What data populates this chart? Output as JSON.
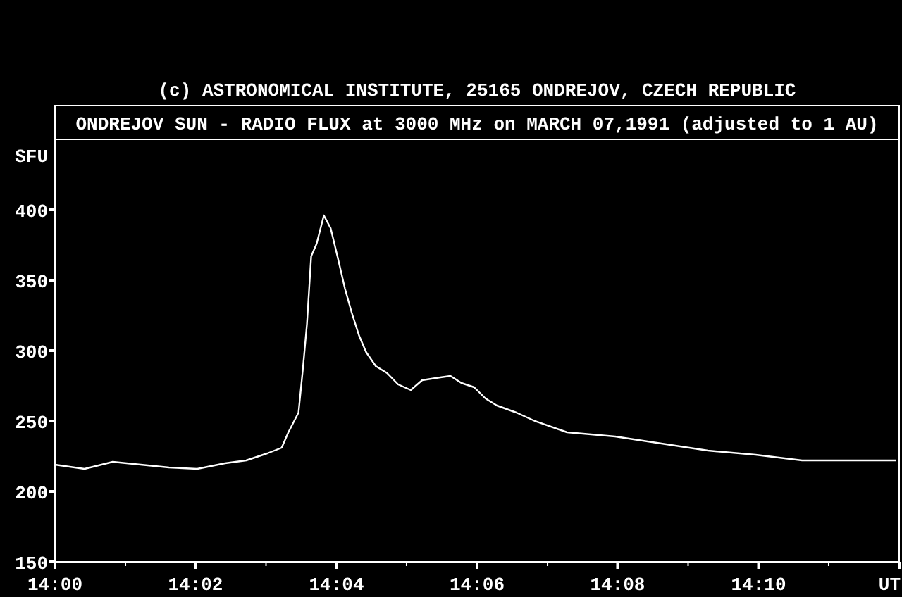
{
  "chart_data": {
    "type": "line",
    "title": "ONDREJOV SUN - RADIO FLUX at 3000 MHz on MARCH 07,1991 (adjusted to 1 AU)",
    "ylabel": "SFU",
    "annotations": [
      "(c) ASTRONOMICAL INSTITUTE, 25165 ONDREJOV, CZECH REPUBLIC"
    ],
    "x": [
      14,
      14.007,
      14.0137,
      14.0203,
      14.027,
      14.0337,
      14.0403,
      14.0453,
      14.0503,
      14.0537,
      14.0553,
      14.0577,
      14.0587,
      14.0597,
      14.0607,
      14.062,
      14.0637,
      14.0653,
      14.067,
      14.0687,
      14.0703,
      14.072,
      14.0737,
      14.076,
      14.0787,
      14.0813,
      14.0843,
      14.087,
      14.0913,
      14.0937,
      14.0963,
      14.0993,
      14.102,
      14.1047,
      14.1093,
      14.1137,
      14.1213,
      14.1327,
      14.1437,
      14.1547,
      14.166,
      14.177,
      14.188,
      14.1993
    ],
    "series": [
      {
        "color": "#ffffff",
        "values": [
          219,
          216,
          221,
          219,
          217,
          216,
          220,
          222,
          227,
          231,
          242,
          256,
          286,
          319,
          367,
          376,
          396,
          387,
          366,
          344,
          327,
          311,
          299,
          289,
          284,
          276,
          272,
          279,
          281,
          282,
          277,
          274,
          266,
          261,
          256,
          250,
          242,
          239,
          234,
          229,
          226,
          222,
          222,
          222
        ]
      }
    ],
    "xlim": [
      14,
      14.2
    ],
    "xticks": [
      {
        "value": 14,
        "label": "14:00"
      },
      {
        "value": 14.0167,
        "label": null
      },
      {
        "value": 14.0333,
        "label": "14:02"
      },
      {
        "value": 14.05,
        "label": null
      },
      {
        "value": 14.0667,
        "label": "14:04"
      },
      {
        "value": 14.0833,
        "label": null
      },
      {
        "value": 14.1,
        "label": "14:06"
      },
      {
        "value": 14.1167,
        "label": null
      },
      {
        "value": 14.1333,
        "label": "14:08"
      },
      {
        "value": 14.15,
        "label": null
      },
      {
        "value": 14.1667,
        "label": "14:10"
      },
      {
        "value": 14.1833,
        "label": null
      },
      {
        "value": 14.2,
        "label": "UT"
      }
    ],
    "ylim": [
      150,
      450
    ],
    "yticks": [
      150,
      200,
      250,
      300,
      350,
      400
    ],
    "grid": false,
    "marker": "none",
    "line_style": "solid"
  }
}
